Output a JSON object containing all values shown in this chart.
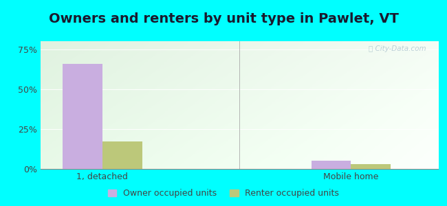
{
  "title": "Owners and renters by unit type in Pawlet, VT",
  "categories": [
    "1, detached",
    "Mobile home"
  ],
  "owner_values": [
    66,
    5
  ],
  "renter_values": [
    17,
    3
  ],
  "owner_color": "#c9aee0",
  "renter_color": "#bcc87a",
  "yticks": [
    0,
    25,
    50,
    75
  ],
  "ytick_labels": [
    "0%",
    "25%",
    "50%",
    "75%"
  ],
  "ylim": [
    0,
    80
  ],
  "bar_width": 0.32,
  "watermark": "City-Data.com",
  "legend_labels": [
    "Owner occupied units",
    "Renter occupied units"
  ],
  "outer_bg": "#00ffff",
  "plot_bg_left": "#d0ecd8",
  "plot_bg_right": "#e8f5e8",
  "group_positions": [
    0.5,
    2.5
  ],
  "xlim": [
    0,
    3.2
  ],
  "title_fontsize": 14,
  "tick_fontsize": 9,
  "legend_fontsize": 9,
  "text_color": "#444444",
  "divider_x": 1.6
}
